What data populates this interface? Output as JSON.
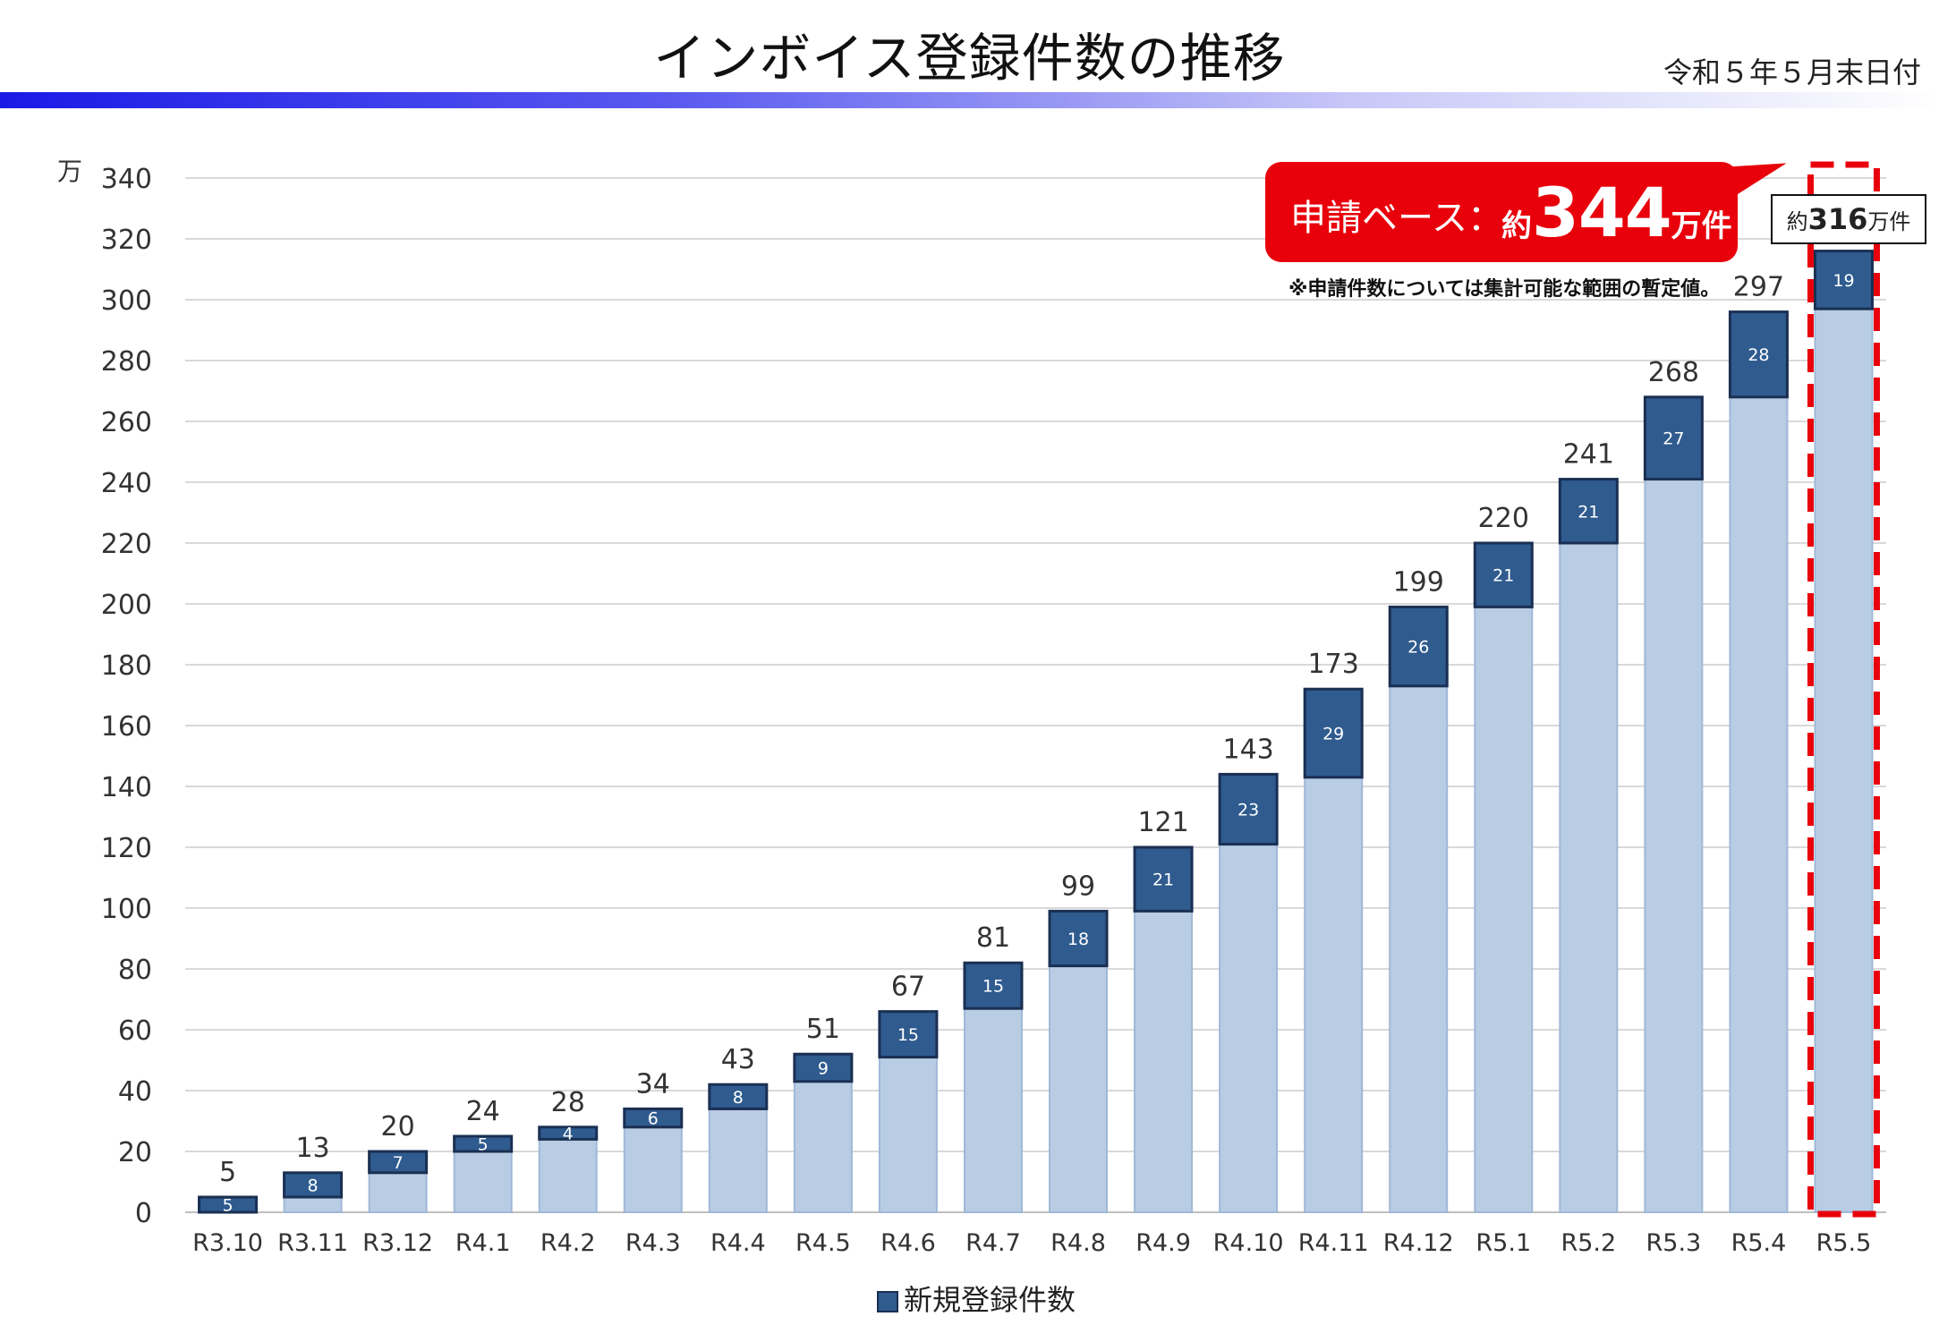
{
  "page": {
    "title": "インボイス登録件数の推移",
    "date_note": "令和５年５月末日付"
  },
  "callout": {
    "label": "申請ベース：",
    "value_prefix": "約",
    "value": "344",
    "value_unit": "万件",
    "note": "※申請件数については集計可能な範囲の暫定値。"
  },
  "approx_label": {
    "prefix": "約",
    "value": "316",
    "unit": "万件"
  },
  "colors": {
    "base_bar": "#b8cce4",
    "new_bar": "#2f5b8f",
    "new_bar_border": "#1a2f52",
    "callout": "#e8000b",
    "highlight_dash": "#e8000b",
    "grid": "#d9d9d9"
  },
  "chart_data": {
    "type": "bar",
    "stacked": true,
    "ylabel": "万",
    "ylim": [
      0,
      340
    ],
    "yticks": [
      0,
      20,
      40,
      60,
      80,
      100,
      120,
      140,
      160,
      180,
      200,
      220,
      240,
      260,
      280,
      300,
      320,
      340
    ],
    "categories": [
      "R3.10",
      "R3.11",
      "R3.12",
      "R4.1",
      "R4.2",
      "R4.3",
      "R4.4",
      "R4.5",
      "R4.6",
      "R4.7",
      "R4.8",
      "R4.9",
      "R4.10",
      "R4.11",
      "R4.12",
      "R5.1",
      "R5.2",
      "R5.3",
      "R5.4",
      "R5.5"
    ],
    "totals": [
      5,
      13,
      20,
      24,
      28,
      34,
      43,
      51,
      67,
      81,
      99,
      121,
      143,
      173,
      199,
      220,
      241,
      268,
      297,
      null
    ],
    "series": [
      {
        "name": "",
        "values": [
          0,
          5,
          13,
          20,
          24,
          28,
          34,
          43,
          51,
          67,
          81,
          99,
          121,
          143,
          173,
          199,
          220,
          241,
          268,
          297
        ]
      },
      {
        "name": "新規登録件数",
        "values": [
          5,
          8,
          7,
          5,
          4,
          6,
          8,
          9,
          15,
          15,
          18,
          21,
          23,
          29,
          26,
          21,
          21,
          27,
          28,
          19
        ]
      }
    ],
    "highlight_category": "R5.5",
    "grid": true,
    "legend_position": "bottom-center"
  }
}
